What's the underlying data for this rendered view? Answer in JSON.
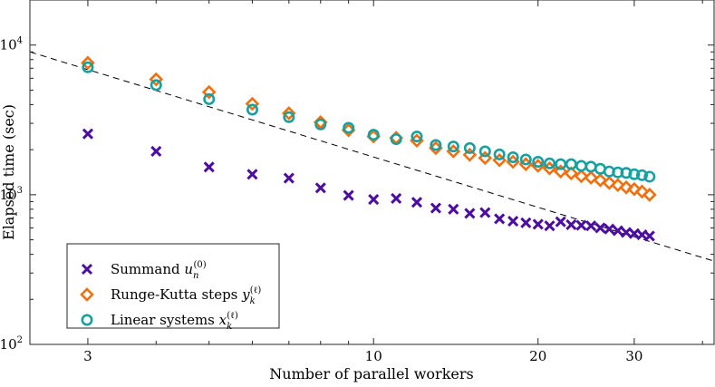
{
  "chart_data": {
    "type": "scatter",
    "xscale": "log",
    "yscale": "log",
    "xlabel": "Number of parallel workers",
    "ylabel": "Elapsed time (sec)",
    "xlim": [
      2.35,
      42
    ],
    "ylim": [
      100,
      20000
    ],
    "x_ticks": [
      {
        "value": 3,
        "label": "3"
      },
      {
        "value": 10,
        "label": "10"
      },
      {
        "value": 20,
        "label": "20"
      },
      {
        "value": 30,
        "label": "30"
      }
    ],
    "y_ticks": [
      {
        "value": 100,
        "label": "10",
        "exp": "2"
      },
      {
        "value": 1000,
        "label": "10",
        "exp": "3"
      },
      {
        "value": 10000,
        "label": "10",
        "exp": "4"
      }
    ],
    "legend_position": "bottom-left",
    "reference_line": {
      "style": "dashed",
      "color": "#000000",
      "from": [
        2.35,
        9000
      ],
      "to": [
        42,
        360
      ]
    },
    "series": [
      {
        "name": "Summand",
        "legend_label": "Summand",
        "math_base": "u",
        "math_sub": "n",
        "math_sup": "(0)",
        "marker": "x",
        "color": "#4b0ea0",
        "x": [
          3,
          4,
          5,
          6,
          7,
          8,
          9,
          10,
          11,
          12,
          13,
          14,
          15,
          16,
          17,
          18,
          19,
          20,
          21,
          22,
          23,
          24,
          25,
          26,
          27,
          28,
          29,
          30,
          31,
          32
        ],
        "values": [
          2550,
          1950,
          1530,
          1370,
          1290,
          1110,
          990,
          930,
          945,
          890,
          815,
          800,
          750,
          760,
          690,
          665,
          650,
          635,
          620,
          660,
          630,
          625,
          620,
          600,
          590,
          575,
          560,
          550,
          540,
          530
        ]
      },
      {
        "name": "Runge-Kutta steps",
        "legend_label": "Runge-Kutta steps",
        "math_base": "y",
        "math_sub": "k",
        "math_sup": "(ℓ)",
        "marker": "diamond",
        "color": "#f07010",
        "x": [
          3,
          4,
          5,
          6,
          7,
          8,
          9,
          10,
          11,
          12,
          13,
          14,
          15,
          16,
          17,
          18,
          19,
          20,
          21,
          22,
          23,
          24,
          25,
          26,
          27,
          28,
          29,
          30,
          31,
          32
        ],
        "values": [
          7600,
          5900,
          4850,
          4050,
          3500,
          3050,
          2700,
          2450,
          2400,
          2300,
          2050,
          1950,
          1850,
          1760,
          1700,
          1660,
          1600,
          1560,
          1500,
          1430,
          1390,
          1330,
          1300,
          1250,
          1200,
          1160,
          1120,
          1090,
          1050,
          1000
        ]
      },
      {
        "name": "Linear systems",
        "legend_label": "Linear systems",
        "math_base": "x",
        "math_sub": "k",
        "math_sup": "(ℓ)",
        "marker": "circle",
        "color": "#17a0a0",
        "x": [
          3,
          4,
          5,
          6,
          7,
          8,
          9,
          10,
          11,
          12,
          13,
          14,
          15,
          16,
          17,
          18,
          19,
          20,
          21,
          22,
          23,
          24,
          25,
          26,
          27,
          28,
          29,
          30,
          31,
          32
        ],
        "values": [
          7100,
          5400,
          4350,
          3700,
          3300,
          2950,
          2800,
          2520,
          2350,
          2450,
          2150,
          2100,
          2050,
          1950,
          1860,
          1780,
          1720,
          1660,
          1620,
          1600,
          1600,
          1560,
          1540,
          1490,
          1430,
          1410,
          1400,
          1370,
          1350,
          1320
        ]
      }
    ]
  }
}
